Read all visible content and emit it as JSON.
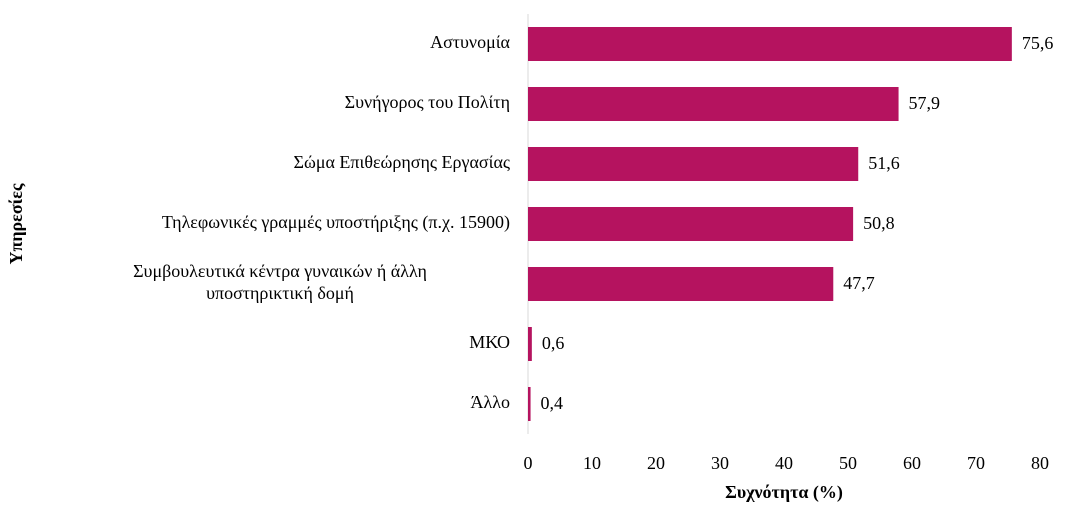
{
  "chart_data": {
    "type": "barh",
    "xlabel": "Συχνότητα (%)",
    "ylabel": "Υπηρεσίες",
    "categories": [
      "Αστυνομία",
      "Συνήγορος του Πολίτη",
      "Σώμα Επιθεώρησης Εργασίας",
      "Τηλεφωνικές γραμμές υποστήριξης (π.χ. 15900)",
      "Συμβουλευτικά κέντρα γυναικών  ή άλλη\nυποστηρικτική δομή",
      "ΜΚΟ",
      "Άλλο"
    ],
    "values": [
      75.6,
      57.9,
      51.6,
      50.8,
      47.7,
      0.6,
      0.4
    ],
    "value_labels": [
      "75,6",
      "57,9",
      "51,6",
      "50,8",
      "47,7",
      "0,6",
      "0,4"
    ],
    "color": "#b5135f",
    "xlim": [
      0,
      80
    ],
    "xticks": [
      0,
      10,
      20,
      30,
      40,
      50,
      60,
      70,
      80
    ],
    "grid": false
  }
}
